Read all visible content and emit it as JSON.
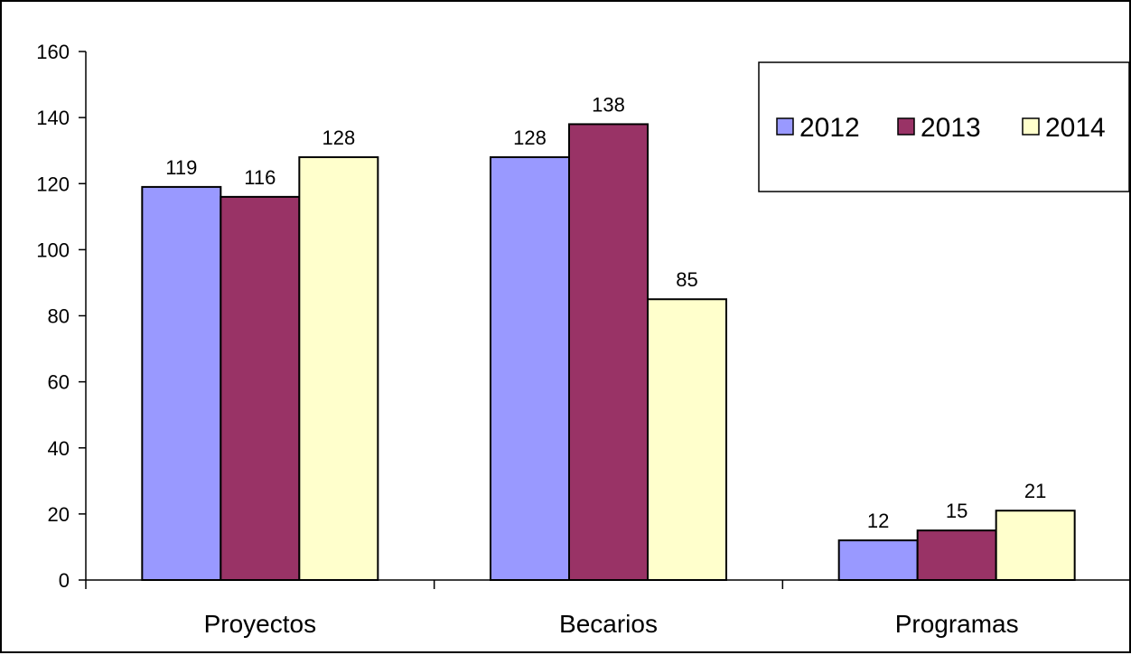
{
  "chart_data": {
    "type": "bar",
    "categories": [
      "Proyectos",
      "Becarios",
      "Programas"
    ],
    "series": [
      {
        "name": "2012",
        "values": [
          119,
          128,
          12
        ],
        "color": "#9999ff"
      },
      {
        "name": "2013",
        "values": [
          116,
          138,
          15
        ],
        "color": "#993366"
      },
      {
        "name": "2014",
        "values": [
          128,
          85,
          21
        ],
        "color": "#ffffcc"
      }
    ],
    "ylim": [
      0,
      160
    ],
    "yticks": [
      "0",
      "20",
      "40",
      "60",
      "80",
      "100",
      "120",
      "140",
      "160"
    ],
    "legend_position": "top-right",
    "grid": false
  }
}
